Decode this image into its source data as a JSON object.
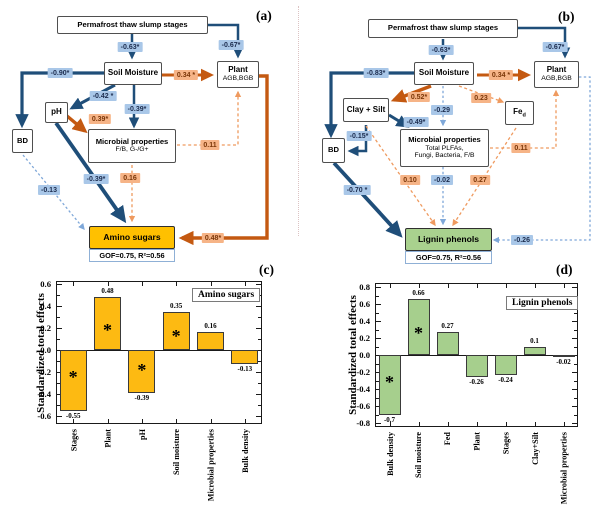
{
  "panel_letters": {
    "a": "(a)",
    "b": "(b)",
    "c": "(c)",
    "d": "(d)"
  },
  "sem_a": {
    "nodes": {
      "stages": "Permafrost thaw slump stages",
      "soil_moisture": "Soil Moisture",
      "plant": "Plant",
      "plant_sub": "AGB,BGB",
      "ph": "pH",
      "bd": "BD",
      "microbial": "Microbial properties",
      "microbial_sub": "F/B, G-/G+",
      "outcome": "Amino sugars",
      "gof": "GOF=0.75, R²=0.56"
    },
    "coefs": {
      "stages_soil": "-0.63*",
      "stages_plant": "-0.67*",
      "soil_bd": "-0.90*",
      "soil_plant": "0.34 *",
      "soil_ph": "-0.42 *",
      "soil_microbial": "-0.39*",
      "ph_microbial": "0.39*",
      "microbial_plant": "0.11",
      "ph_outcome": "-0.39*",
      "microbial_outcome": "0.16",
      "bd_outcome": "-0.13",
      "plant_outcome": "0.48*"
    }
  },
  "sem_b": {
    "nodes": {
      "stages": "Permafrost thaw slump stages",
      "soil_moisture": "Soil Moisture",
      "plant": "Plant",
      "plant_sub": "AGB,BGB",
      "clay_silt": "Clay + Silt",
      "fed_main": "Fe",
      "fed_sub": "d",
      "bd": "BD",
      "microbial": "Microbial properties",
      "microbial_sub1": "Total PLFAs,",
      "microbial_sub2": "Fungi, Bacteria, F/B",
      "outcome": "Lignin phenols",
      "gof": "GOF=0.75, R²=0.56"
    },
    "coefs": {
      "stages_soil": "-0.63*",
      "stages_plant": "-0.67*",
      "soil_bd": "-0.83*",
      "soil_plant": "0.34 *",
      "soil_clay": "0.52*",
      "soil_fed": "0.23",
      "soil_microbial": "-0.29",
      "clay_microbial": "-0.49*",
      "clay_bd": "-0.15*",
      "microbial_plant": "0.11",
      "clay_outcome": "0.10",
      "microbial_outcome": "-0.02",
      "fed_outcome": "0.27",
      "bd_outcome": "-0.70 *",
      "plant_outcome": "-0.26"
    }
  },
  "chart_data": [
    {
      "type": "bar",
      "panel": "c",
      "legend": "Amino sugars",
      "ylabel": "Standardized total effects",
      "ylim": [
        -0.6,
        0.6
      ],
      "tick_step": 0.2,
      "grid": false,
      "categories": [
        "Stages",
        "Plant",
        "pH",
        "Soil moisture",
        "Microbial properties",
        "Bulk density"
      ],
      "values": [
        -0.55,
        0.48,
        -0.39,
        0.35,
        0.16,
        -0.13
      ],
      "value_labels": [
        "-0.55",
        "0.48",
        "-0.39",
        "0.35",
        "0.16",
        "-0.13"
      ],
      "significant": [
        true,
        true,
        true,
        true,
        false,
        false
      ],
      "bar_color": "#FDBA12"
    },
    {
      "type": "bar",
      "panel": "d",
      "legend": "Lignin phenols",
      "ylabel": "Standardized total effects",
      "ylim": [
        -0.8,
        0.8
      ],
      "tick_step": 0.2,
      "grid": false,
      "categories": [
        "Bulk density",
        "Soil moisture",
        "Fed",
        "Plant",
        "Stages",
        "Clay+Silt",
        "Microbial properties"
      ],
      "values": [
        -0.7,
        0.66,
        0.27,
        -0.26,
        -0.24,
        0.1,
        -0.02
      ],
      "value_labels": [
        "-0.7",
        "0.66",
        "0.27",
        "-0.26",
        "-0.24",
        "0.1",
        "-0.02"
      ],
      "significant": [
        true,
        true,
        false,
        false,
        false,
        false,
        false
      ],
      "bar_color": "#A6CF8D"
    }
  ]
}
